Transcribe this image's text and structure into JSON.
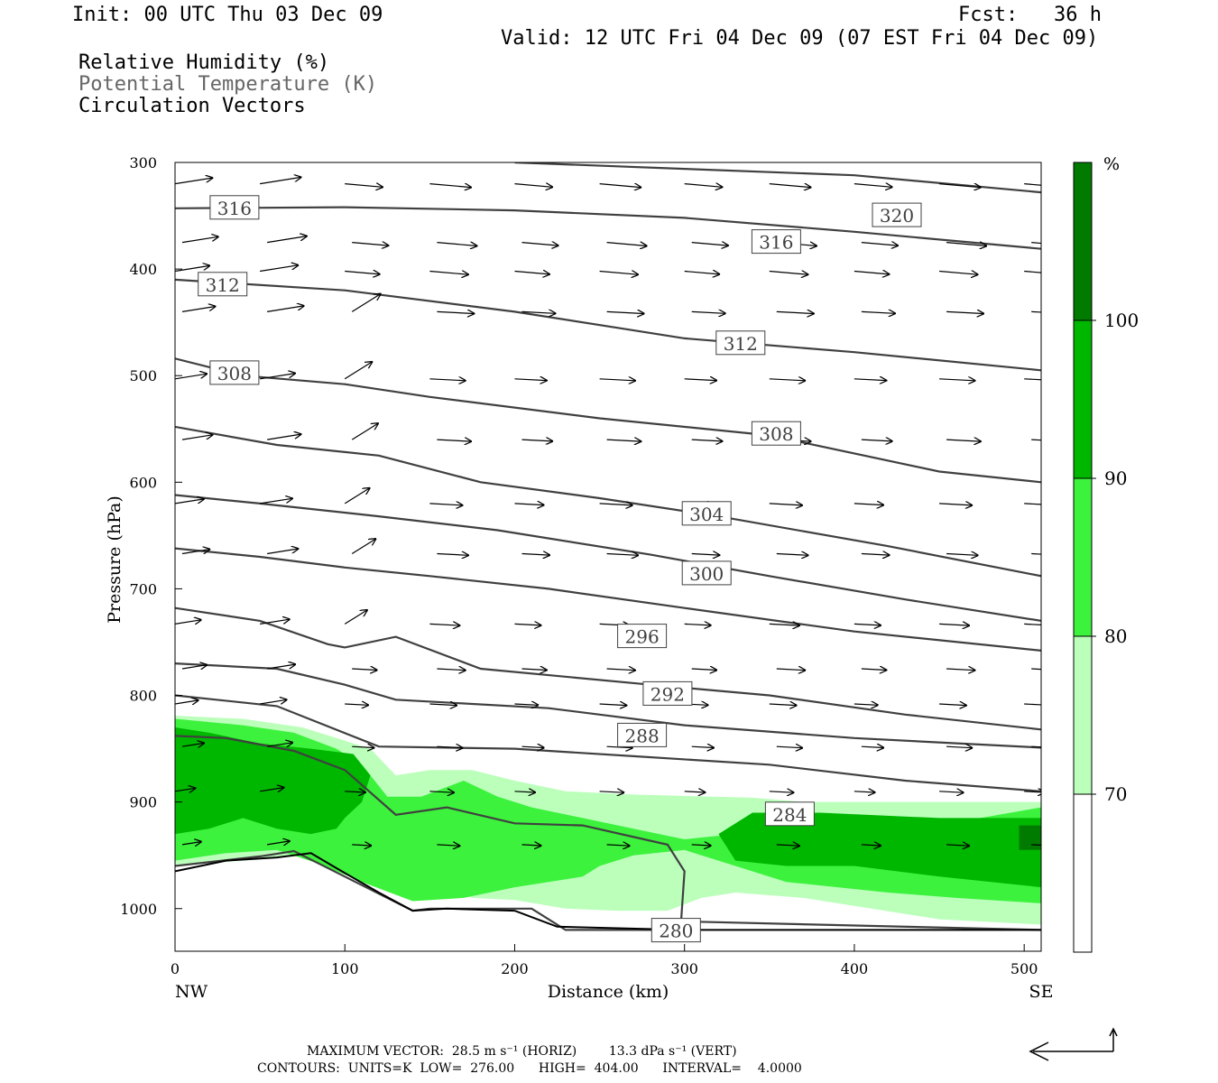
{
  "header": {
    "init": "Init: 00 UTC Thu 03 Dec 09",
    "fcst": "Fcst:   36 h",
    "valid": "Valid: 12 UTC Fri 04 Dec 09 (07 EST Fri 04 Dec 09)"
  },
  "legend_titles": {
    "rh": "Relative Humidity (%)",
    "theta": "Potential Temperature (K)",
    "vectors": "Circulation Vectors"
  },
  "colorbar": {
    "unit": "%",
    "labels": [
      "100",
      "90",
      "80",
      "70"
    ],
    "colors": [
      "#007b00",
      "#00b700",
      "#3cf23c",
      "#bbffbb",
      "#ffffff"
    ]
  },
  "footer": {
    "line1": "MAXIMUM VECTOR:  28.5 m s⁻¹ (HORIZ)        13.3 dPa s⁻¹ (VERT)",
    "line2": "CONTOURS:  UNITS=K  LOW=  276.00      HIGH=  404.00      INTERVAL=    4.0000"
  },
  "chart_data": {
    "type": "cross-section",
    "xlabel": "Distance (km)",
    "ylabel": "Pressure (hPa)",
    "xlim": [
      0,
      510
    ],
    "ylim": [
      300,
      1040
    ],
    "y_log_scale": false,
    "x_ticks": [
      0,
      100,
      200,
      300,
      400,
      500
    ],
    "y_ticks": [
      300,
      400,
      500,
      600,
      700,
      800,
      900,
      1000
    ],
    "x_end_labels": {
      "left": "NW",
      "right": "SE"
    },
    "grid": false,
    "rh_fill_levels": [
      70,
      80,
      90,
      100
    ],
    "rh_regions": [
      {
        "level": 70,
        "polygon": [
          [
            0,
            819
          ],
          [
            40,
            822
          ],
          [
            75,
            830
          ],
          [
            95,
            840
          ],
          [
            115,
            850
          ],
          [
            130,
            875
          ],
          [
            150,
            870
          ],
          [
            175,
            870
          ],
          [
            200,
            880
          ],
          [
            230,
            890
          ],
          [
            270,
            893
          ],
          [
            340,
            896
          ],
          [
            370,
            900
          ],
          [
            420,
            900
          ],
          [
            475,
            900
          ],
          [
            510,
            900
          ],
          [
            510,
            1015
          ],
          [
            450,
            1010
          ],
          [
            410,
            1000
          ],
          [
            370,
            990
          ],
          [
            330,
            985
          ],
          [
            310,
            990
          ],
          [
            290,
            1002
          ],
          [
            260,
            1002
          ],
          [
            230,
            1000
          ],
          [
            200,
            992
          ],
          [
            175,
            990
          ],
          [
            160,
            982
          ],
          [
            120,
            960
          ],
          [
            80,
            950
          ],
          [
            40,
            955
          ],
          [
            0,
            960
          ]
        ]
      },
      {
        "level": 80,
        "polygon": [
          [
            0,
            822
          ],
          [
            40,
            828
          ],
          [
            70,
            835
          ],
          [
            95,
            850
          ],
          [
            110,
            865
          ],
          [
            125,
            895
          ],
          [
            145,
            895
          ],
          [
            170,
            880
          ],
          [
            190,
            895
          ],
          [
            210,
            905
          ],
          [
            240,
            915
          ],
          [
            270,
            925
          ],
          [
            300,
            935
          ],
          [
            330,
            930
          ],
          [
            360,
            930
          ],
          [
            420,
            930
          ],
          [
            510,
            905
          ],
          [
            510,
            995
          ],
          [
            460,
            990
          ],
          [
            420,
            985
          ],
          [
            360,
            975
          ],
          [
            320,
            955
          ],
          [
            300,
            945
          ],
          [
            270,
            950
          ],
          [
            250,
            960
          ],
          [
            240,
            970
          ],
          [
            200,
            980
          ],
          [
            170,
            990
          ],
          [
            140,
            993
          ],
          [
            110,
            975
          ],
          [
            85,
            958
          ],
          [
            60,
            945
          ],
          [
            30,
            948
          ],
          [
            0,
            955
          ]
        ]
      },
      {
        "level": 90,
        "polygon": [
          [
            0,
            830
          ],
          [
            20,
            835
          ],
          [
            50,
            845
          ],
          [
            80,
            850
          ],
          [
            105,
            855
          ],
          [
            115,
            875
          ],
          [
            110,
            900
          ],
          [
            100,
            915
          ],
          [
            95,
            925
          ],
          [
            80,
            930
          ],
          [
            60,
            925
          ],
          [
            40,
            915
          ],
          [
            20,
            925
          ],
          [
            0,
            930
          ]
        ]
      },
      {
        "level": 90,
        "polygon": [
          [
            320,
            930
          ],
          [
            340,
            910
          ],
          [
            380,
            910
          ],
          [
            450,
            915
          ],
          [
            510,
            915
          ],
          [
            510,
            980
          ],
          [
            450,
            970
          ],
          [
            400,
            960
          ],
          [
            360,
            960
          ],
          [
            330,
            955
          ]
        ]
      },
      {
        "level": 100,
        "polygon": [
          [
            497,
            922
          ],
          [
            510,
            922
          ],
          [
            510,
            945
          ],
          [
            497,
            945
          ]
        ]
      }
    ],
    "theta_contour_labels": [
      {
        "value": 316,
        "x": 35,
        "p": 343
      },
      {
        "value": 320,
        "x": 425,
        "p": 350
      },
      {
        "value": 316,
        "x": 354,
        "p": 375
      },
      {
        "value": 312,
        "x": 28,
        "p": 415
      },
      {
        "value": 312,
        "x": 333,
        "p": 470
      },
      {
        "value": 308,
        "x": 35,
        "p": 498
      },
      {
        "value": 308,
        "x": 354,
        "p": 555
      },
      {
        "value": 304,
        "x": 313,
        "p": 630
      },
      {
        "value": 300,
        "x": 313,
        "p": 686
      },
      {
        "value": 296,
        "x": 275,
        "p": 745
      },
      {
        "value": 292,
        "x": 290,
        "p": 799
      },
      {
        "value": 288,
        "x": 275,
        "p": 838
      },
      {
        "value": 284,
        "x": 362,
        "p": 912
      },
      {
        "value": 280,
        "x": 295,
        "p": 1021
      }
    ]
  }
}
